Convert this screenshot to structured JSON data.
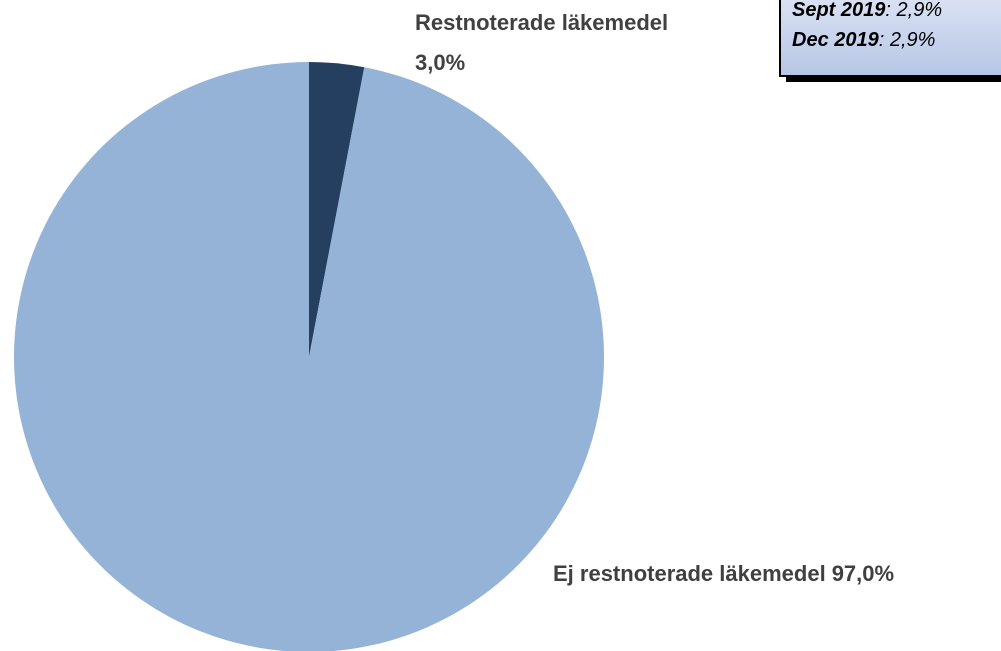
{
  "chart_data": {
    "type": "pie",
    "categories": [
      "Restnoterade läkemedel",
      "Ej restnoterade läkemedel"
    ],
    "values": [
      3.0,
      97.0
    ],
    "value_labels": [
      "3,0%",
      "97,0%"
    ],
    "colors": [
      "#243f60",
      "#95b3d7"
    ],
    "annotations": [
      {
        "label": "Sept 2019",
        "text": "2,9%"
      },
      {
        "label": "Dec 2019",
        "text": "2,9%"
      }
    ]
  }
}
